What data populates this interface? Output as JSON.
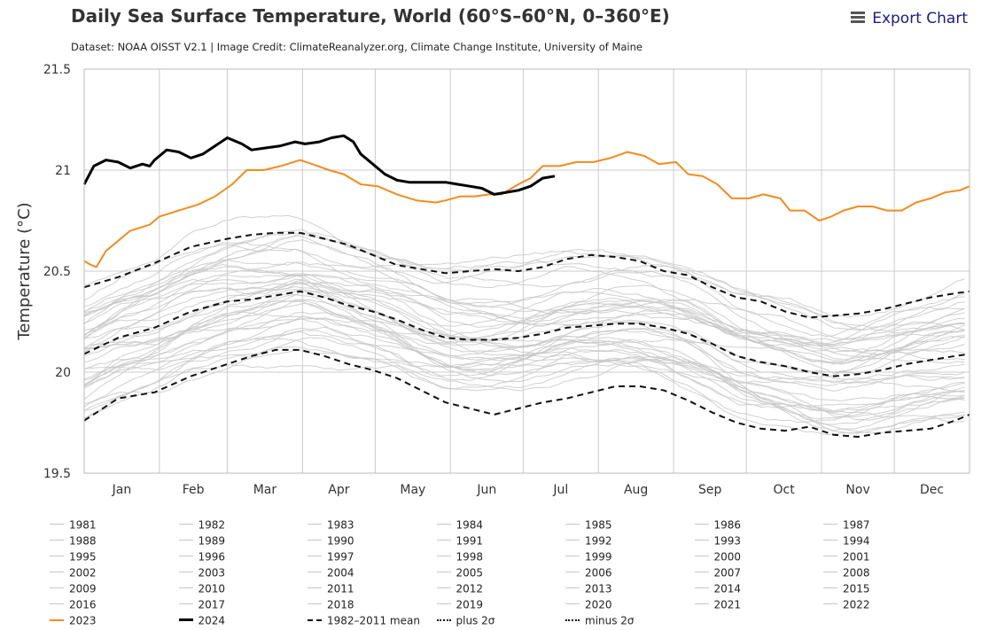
{
  "header": {
    "title": "Daily Sea Surface Temperature, World (60°S–60°N, 0–360°E)",
    "credit": "Dataset: NOAA OISST V2.1 | Image Credit: ClimateReanalyzer.org, Climate Change Institute, University of Maine",
    "export_label": "Export Chart"
  },
  "colors": {
    "y2023": "#f28c1e",
    "y2024": "#000000",
    "background_years": "#c8c8c8",
    "mean": "#111111",
    "grid": "#cccccc"
  },
  "chart_data": {
    "type": "line",
    "title": "Daily Sea Surface Temperature, World (60°S–60°N, 0–360°E)",
    "ylabel": "Temperature (°C)",
    "xlabel": "",
    "ylim": [
      19.5,
      21.5
    ],
    "y_ticks": [
      "19.5",
      "20",
      "20.5",
      "21",
      "21.5"
    ],
    "x_ticks": [
      "Jan",
      "Feb",
      "Mar",
      "Apr",
      "May",
      "Jun",
      "Jul",
      "Aug",
      "Sep",
      "Oct",
      "Nov",
      "Dec"
    ],
    "x_unit": "day of year",
    "xlim": [
      1,
      366
    ],
    "grid": true,
    "legend_position": "bottom",
    "series": [
      {
        "name": "2023",
        "style": "solid-orange",
        "x": [
          1,
          4,
          6,
          10,
          15,
          20,
          28,
          32,
          40,
          48,
          55,
          62,
          68,
          75,
          82,
          90,
          95,
          102,
          108,
          115,
          122,
          130,
          138,
          146,
          150,
          156,
          162,
          168,
          173,
          180,
          185,
          190,
          197,
          204,
          211,
          218,
          225,
          232,
          238,
          245,
          250,
          256,
          262,
          268,
          275,
          281,
          288,
          292,
          298,
          304,
          309,
          314,
          320,
          326,
          332,
          338,
          344,
          350,
          356,
          362,
          366
        ],
        "y": [
          20.55,
          20.53,
          20.52,
          20.6,
          20.65,
          20.7,
          20.73,
          20.77,
          20.8,
          20.83,
          20.87,
          20.93,
          21.0,
          21.0,
          21.02,
          21.05,
          21.03,
          21.0,
          20.98,
          20.93,
          20.92,
          20.88,
          20.85,
          20.84,
          20.85,
          20.87,
          20.87,
          20.88,
          20.88,
          20.93,
          20.96,
          21.02,
          21.02,
          21.04,
          21.04,
          21.06,
          21.09,
          21.07,
          21.03,
          21.04,
          20.98,
          20.97,
          20.93,
          20.86,
          20.86,
          20.88,
          20.86,
          20.8,
          20.8,
          20.75,
          20.77,
          20.8,
          20.82,
          20.82,
          20.8,
          20.8,
          20.84,
          20.86,
          20.89,
          20.9,
          20.92
        ]
      },
      {
        "name": "2024",
        "style": "solid-black",
        "x": [
          1,
          5,
          10,
          15,
          20,
          25,
          28,
          30,
          35,
          40,
          45,
          50,
          55,
          60,
          66,
          70,
          76,
          82,
          88,
          92,
          98,
          103,
          108,
          112,
          115,
          120,
          125,
          130,
          135,
          140,
          145,
          150,
          155,
          160,
          165,
          170,
          175,
          180,
          185,
          190,
          195
        ],
        "y": [
          20.93,
          21.02,
          21.05,
          21.04,
          21.01,
          21.03,
          21.02,
          21.05,
          21.1,
          21.09,
          21.06,
          21.08,
          21.12,
          21.16,
          21.13,
          21.1,
          21.11,
          21.12,
          21.14,
          21.13,
          21.14,
          21.16,
          21.17,
          21.14,
          21.08,
          21.03,
          20.98,
          20.95,
          20.94,
          20.94,
          20.94,
          20.94,
          20.93,
          20.92,
          20.91,
          20.88,
          20.89,
          20.9,
          20.92,
          20.96,
          20.97
        ]
      },
      {
        "name": "1982–2011 mean",
        "style": "dashed-black",
        "x": [
          1,
          15,
          30,
          45,
          60,
          70,
          80,
          90,
          100,
          110,
          120,
          130,
          140,
          150,
          160,
          170,
          180,
          190,
          200,
          210,
          220,
          230,
          240,
          250,
          260,
          270,
          280,
          290,
          300,
          310,
          320,
          330,
          340,
          350,
          360,
          366
        ],
        "y": [
          20.09,
          20.17,
          20.22,
          20.3,
          20.35,
          20.36,
          20.38,
          20.4,
          20.37,
          20.33,
          20.3,
          20.26,
          20.21,
          20.17,
          20.16,
          20.16,
          20.17,
          20.19,
          20.22,
          20.23,
          20.24,
          20.24,
          20.22,
          20.19,
          20.14,
          20.08,
          20.05,
          20.03,
          20.0,
          19.98,
          19.99,
          20.01,
          20.04,
          20.06,
          20.08,
          20.09
        ]
      },
      {
        "name": "plus 2σ",
        "style": "dashed-black",
        "x": [
          1,
          15,
          30,
          45,
          60,
          70,
          80,
          90,
          100,
          110,
          120,
          130,
          140,
          150,
          160,
          170,
          180,
          190,
          200,
          210,
          220,
          230,
          240,
          250,
          260,
          270,
          280,
          290,
          300,
          310,
          320,
          330,
          340,
          350,
          360,
          366
        ],
        "y": [
          20.42,
          20.47,
          20.54,
          20.62,
          20.66,
          20.68,
          20.69,
          20.69,
          20.66,
          20.63,
          20.58,
          20.53,
          20.51,
          20.49,
          20.5,
          20.51,
          20.5,
          20.52,
          20.56,
          20.58,
          20.57,
          20.55,
          20.5,
          20.48,
          20.42,
          20.37,
          20.35,
          20.3,
          20.27,
          20.28,
          20.29,
          20.31,
          20.34,
          20.37,
          20.39,
          20.4
        ]
      },
      {
        "name": "minus 2σ",
        "style": "dashed-black",
        "x": [
          1,
          15,
          30,
          45,
          60,
          70,
          80,
          90,
          100,
          110,
          120,
          130,
          140,
          150,
          160,
          170,
          180,
          190,
          200,
          210,
          220,
          230,
          240,
          250,
          260,
          270,
          280,
          290,
          300,
          310,
          320,
          330,
          340,
          350,
          360,
          366
        ],
        "y": [
          19.76,
          19.87,
          19.9,
          19.98,
          20.04,
          20.08,
          20.11,
          20.11,
          20.08,
          20.04,
          20.01,
          19.97,
          19.91,
          19.85,
          19.82,
          19.79,
          19.82,
          19.85,
          19.87,
          19.9,
          19.93,
          19.93,
          19.91,
          19.86,
          19.8,
          19.75,
          19.72,
          19.71,
          19.73,
          19.69,
          19.68,
          19.7,
          19.71,
          19.72,
          19.76,
          19.79
        ]
      }
    ]
  },
  "legend": {
    "items": [
      {
        "label": "1981",
        "style": "gray"
      },
      {
        "label": "1982",
        "style": "gray"
      },
      {
        "label": "1983",
        "style": "gray"
      },
      {
        "label": "1984",
        "style": "gray"
      },
      {
        "label": "1985",
        "style": "gray"
      },
      {
        "label": "1986",
        "style": "gray"
      },
      {
        "label": "1987",
        "style": "gray"
      },
      {
        "label": "1988",
        "style": "gray"
      },
      {
        "label": "1989",
        "style": "gray"
      },
      {
        "label": "1990",
        "style": "gray"
      },
      {
        "label": "1991",
        "style": "gray"
      },
      {
        "label": "1992",
        "style": "gray"
      },
      {
        "label": "1993",
        "style": "gray"
      },
      {
        "label": "1994",
        "style": "gray"
      },
      {
        "label": "1995",
        "style": "gray"
      },
      {
        "label": "1996",
        "style": "gray"
      },
      {
        "label": "1997",
        "style": "gray"
      },
      {
        "label": "1998",
        "style": "gray"
      },
      {
        "label": "1999",
        "style": "gray"
      },
      {
        "label": "2000",
        "style": "gray"
      },
      {
        "label": "2001",
        "style": "gray"
      },
      {
        "label": "2002",
        "style": "gray"
      },
      {
        "label": "2003",
        "style": "gray"
      },
      {
        "label": "2004",
        "style": "gray"
      },
      {
        "label": "2005",
        "style": "gray"
      },
      {
        "label": "2006",
        "style": "gray"
      },
      {
        "label": "2007",
        "style": "gray"
      },
      {
        "label": "2008",
        "style": "gray"
      },
      {
        "label": "2009",
        "style": "gray"
      },
      {
        "label": "2010",
        "style": "gray"
      },
      {
        "label": "2011",
        "style": "gray"
      },
      {
        "label": "2012",
        "style": "gray"
      },
      {
        "label": "2013",
        "style": "gray"
      },
      {
        "label": "2014",
        "style": "gray"
      },
      {
        "label": "2015",
        "style": "gray"
      },
      {
        "label": "2016",
        "style": "gray"
      },
      {
        "label": "2017",
        "style": "gray"
      },
      {
        "label": "2018",
        "style": "gray"
      },
      {
        "label": "2019",
        "style": "gray"
      },
      {
        "label": "2020",
        "style": "gray"
      },
      {
        "label": "2021",
        "style": "gray"
      },
      {
        "label": "2022",
        "style": "gray"
      },
      {
        "label": "2023",
        "style": "orange"
      },
      {
        "label": "2024",
        "style": "black"
      },
      {
        "label": "1982–2011 mean",
        "style": "dashed"
      },
      {
        "label": "plus 2σ",
        "style": "dashdot"
      },
      {
        "label": "minus 2σ",
        "style": "dashdot"
      }
    ]
  }
}
